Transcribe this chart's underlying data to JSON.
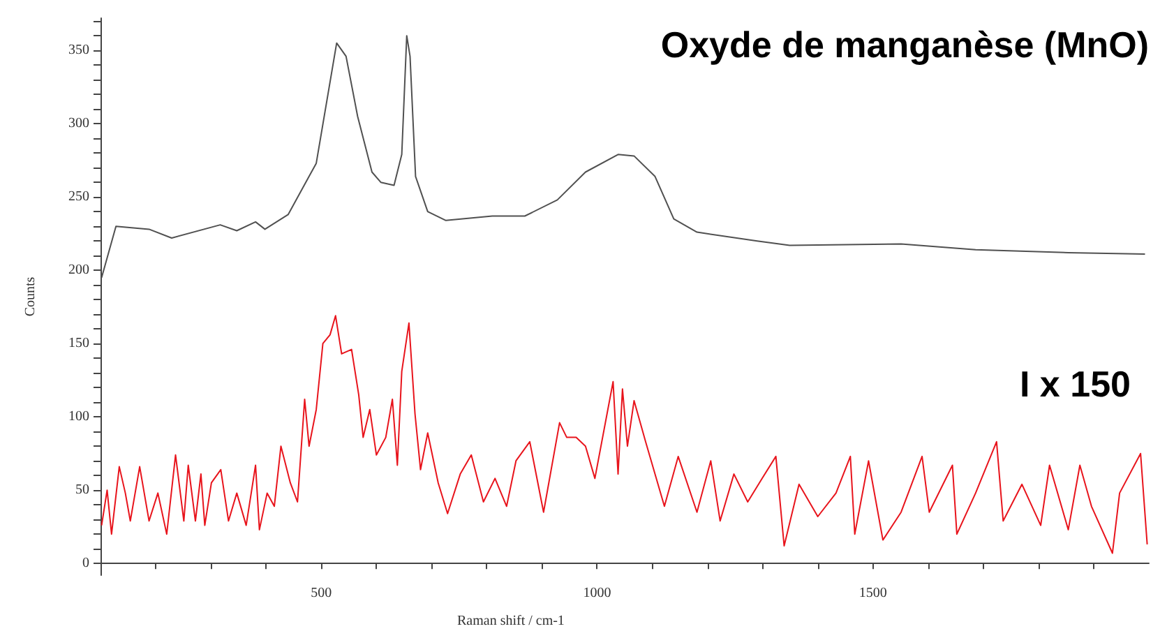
{
  "chart_data": {
    "type": "line",
    "title": "Oxyde de manganèse (MnO)",
    "xlabel": "Raman shift / cm-1",
    "ylabel": "Counts",
    "annotations": [
      "I x 150"
    ],
    "xlim": [
      100,
      2000
    ],
    "ylim": [
      -8,
      372
    ],
    "xticks": [
      {
        "value": 200,
        "label": null
      },
      {
        "value": 300,
        "label": null
      },
      {
        "value": 400,
        "label": null
      },
      500,
      {
        "value": 600,
        "label": null
      },
      {
        "value": 700,
        "label": null
      },
      {
        "value": 800,
        "label": null
      },
      {
        "value": 900,
        "label": null
      },
      1000,
      {
        "value": 1100,
        "label": null
      },
      {
        "value": 1200,
        "label": null
      },
      {
        "value": 1300,
        "label": null
      },
      {
        "value": 1400,
        "label": null
      },
      1500,
      {
        "value": 1600,
        "label": null
      },
      {
        "value": 1700,
        "label": null
      },
      {
        "value": 1800,
        "label": null
      },
      {
        "value": 1900,
        "label": null
      }
    ],
    "yticks": [
      0,
      {
        "value": 10,
        "label": null
      },
      {
        "value": 20,
        "label": null
      },
      {
        "value": 30,
        "label": null
      },
      {
        "value": 40,
        "label": null
      },
      50,
      {
        "value": 60,
        "label": null
      },
      {
        "value": 70,
        "label": null
      },
      {
        "value": 80,
        "label": null
      },
      {
        "value": 90,
        "label": null
      },
      100,
      {
        "value": 110,
        "label": null
      },
      {
        "value": 120,
        "label": null
      },
      {
        "value": 130,
        "label": null
      },
      {
        "value": 140,
        "label": null
      },
      150,
      {
        "value": 160,
        "label": null
      },
      {
        "value": 170,
        "label": null
      },
      {
        "value": 180,
        "label": null
      },
      {
        "value": 190,
        "label": null
      },
      200,
      {
        "value": 210,
        "label": null
      },
      {
        "value": 220,
        "label": null
      },
      {
        "value": 230,
        "label": null
      },
      {
        "value": 240,
        "label": null
      },
      250,
      {
        "value": 260,
        "label": null
      },
      {
        "value": 270,
        "label": null
      },
      {
        "value": 280,
        "label": null
      },
      {
        "value": 290,
        "label": null
      },
      300,
      {
        "value": 310,
        "label": null
      },
      {
        "value": 320,
        "label": null
      },
      {
        "value": 330,
        "label": null
      },
      {
        "value": 340,
        "label": null
      },
      350,
      {
        "value": 360,
        "label": null
      },
      {
        "value": 370,
        "label": null
      }
    ],
    "grid": false,
    "marker": "none",
    "line_style": "solid",
    "series": [
      {
        "color": "#505050",
        "x": [
          102,
          128,
          188,
          229,
          317,
          347,
          381,
          398,
          440,
          491,
          528,
          545,
          566,
          592,
          608,
          632,
          646,
          655,
          661,
          671,
          693,
          726,
          810,
          869,
          928,
          979,
          1038,
          1067,
          1105,
          1139,
          1181,
          1290,
          1349,
          1551,
          1686,
          1854,
          1993
        ],
        "values": [
          195,
          230,
          228,
          222,
          231,
          227,
          233,
          228,
          238,
          273,
          355,
          346,
          305,
          267,
          260,
          258,
          279,
          360,
          346,
          264,
          240,
          234,
          237,
          237,
          248,
          267,
          279,
          278,
          264,
          235,
          226,
          220,
          217,
          218,
          214,
          212,
          211
        ]
      },
      {
        "color": "#e8141c",
        "x": [
          102,
          112,
          120,
          134,
          145,
          154,
          171,
          188,
          204,
          220,
          236,
          251,
          259,
          272,
          282,
          289,
          301,
          318,
          332,
          347,
          364,
          381,
          388,
          402,
          415,
          427,
          444,
          457,
          470,
          478,
          491,
          503,
          516,
          526,
          537,
          555,
          568,
          576,
          588,
          600,
          617,
          629,
          638,
          646,
          659,
          670,
          680,
          693,
          712,
          729,
          752,
          772,
          794,
          815,
          836,
          853,
          878,
          903,
          932,
          945,
          962,
          979,
          996,
          1029,
          1038,
          1046,
          1055,
          1067,
          1088,
          1122,
          1147,
          1181,
          1206,
          1223,
          1248,
          1273,
          1299,
          1324,
          1339,
          1366,
          1400,
          1433,
          1459,
          1467,
          1492,
          1518,
          1551,
          1589,
          1602,
          1644,
          1652,
          1686,
          1724,
          1736,
          1770,
          1804,
          1820,
          1854,
          1875,
          1896,
          1934,
          1947,
          1985,
          1997
        ],
        "values": [
          26,
          50,
          20,
          66,
          48,
          29,
          66,
          29,
          48,
          20,
          74,
          29,
          67,
          29,
          61,
          26,
          55,
          64,
          29,
          48,
          26,
          67,
          23,
          48,
          39,
          80,
          55,
          42,
          112,
          80,
          105,
          150,
          156,
          169,
          143,
          146,
          115,
          86,
          105,
          74,
          86,
          112,
          67,
          131,
          164,
          102,
          64,
          89,
          55,
          34,
          61,
          74,
          42,
          58,
          39,
          70,
          83,
          35,
          96,
          86,
          86,
          80,
          58,
          124,
          61,
          119,
          80,
          111,
          83,
          39,
          73,
          35,
          70,
          29,
          61,
          42,
          58,
          73,
          12,
          54,
          32,
          48,
          73,
          20,
          70,
          16,
          35,
          73,
          35,
          67,
          20,
          48,
          83,
          29,
          54,
          26,
          67,
          23,
          67,
          39,
          7,
          48,
          75,
          13
        ]
      }
    ]
  }
}
